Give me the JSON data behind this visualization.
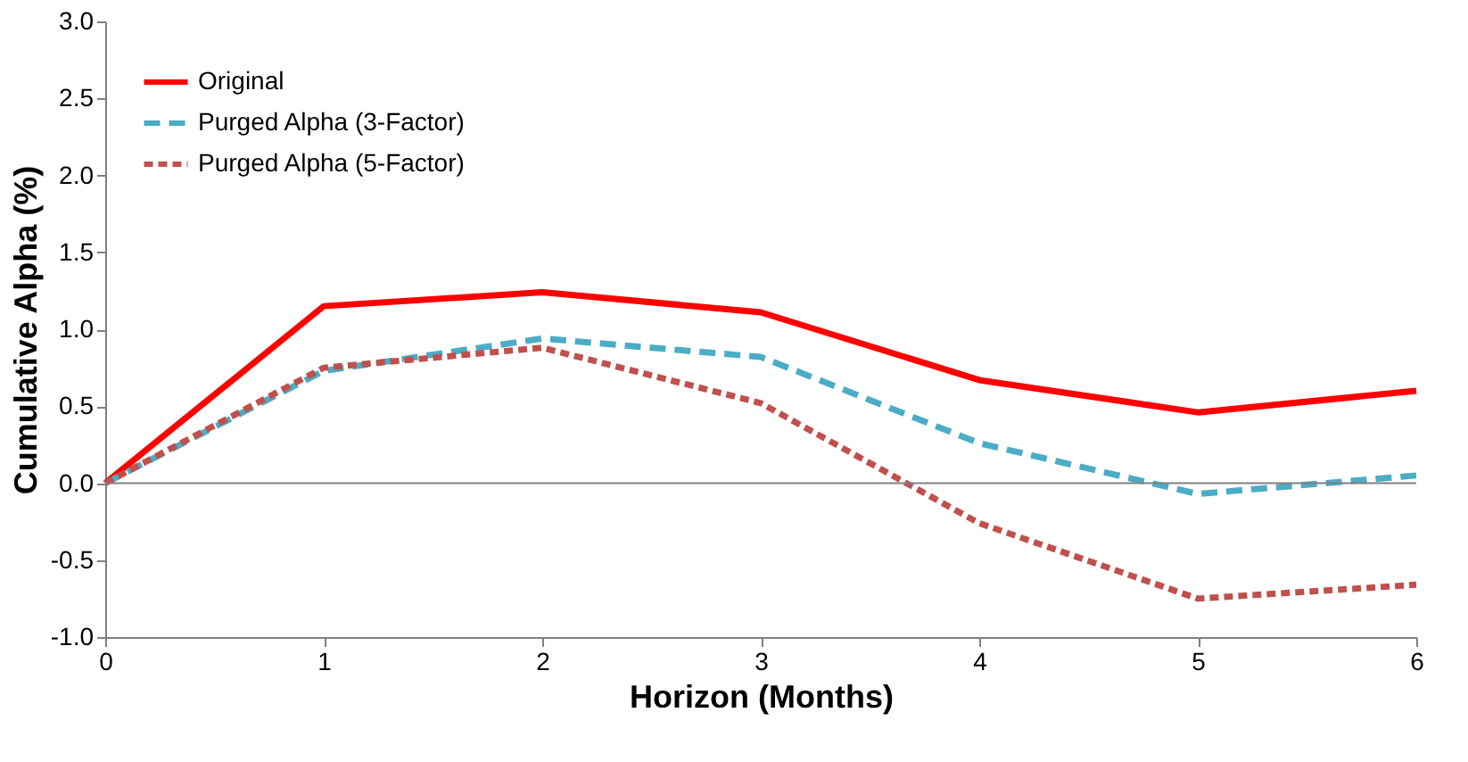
{
  "chart_data": {
    "type": "line",
    "xlabel": "Horizon (Months)",
    "ylabel": "Cumulative Alpha (%)",
    "x": [
      0,
      1,
      2,
      3,
      4,
      5,
      6
    ],
    "series": [
      {
        "name": "Original",
        "color": "#ff0000",
        "line_style": "solid",
        "values": [
          0,
          1.15,
          1.24,
          1.11,
          0.67,
          0.46,
          0.6
        ]
      },
      {
        "name": "Purged Alpha (3-Factor)",
        "color": "#4bacc6",
        "line_style": "dashed",
        "values": [
          0,
          0.73,
          0.94,
          0.82,
          0.26,
          -0.07,
          0.05
        ]
      },
      {
        "name": "Purged Alpha (5-Factor)",
        "color": "#c0504d",
        "line_style": "dotted",
        "values": [
          0,
          0.75,
          0.88,
          0.52,
          -0.26,
          -0.75,
          -0.66
        ]
      }
    ],
    "xlim": [
      0,
      6
    ],
    "xticks": [
      0,
      1,
      2,
      3,
      4,
      5,
      6
    ],
    "ylim": [
      -1,
      3
    ],
    "yticks": [
      {
        "value": -1,
        "label": "-1.0"
      },
      -0.5,
      {
        "value": 0,
        "label": "0.0"
      },
      0.5,
      {
        "value": 1,
        "label": "1.0"
      },
      1.5,
      {
        "value": 2,
        "label": "2.0"
      },
      2.5,
      {
        "value": 3,
        "label": "3.0"
      }
    ],
    "ref_lines": [
      {
        "axis": "y",
        "value": 0,
        "color": "#808080"
      }
    ],
    "grid": false,
    "legend": "top left",
    "marker": "none"
  }
}
